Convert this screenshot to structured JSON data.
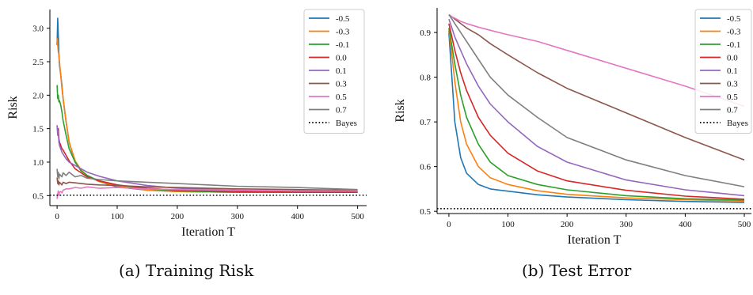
{
  "colors": {
    "-0.5": "#1f77b4",
    "-0.3": "#ff7f0e",
    "-0.1": "#2ca02c",
    "0.0": "#d62728",
    "0.1": "#9467bd",
    "0.3": "#8c564b",
    "0.5": "#e377c2",
    "0.7": "#7f7f7f",
    "bayes": "#000000"
  },
  "captions": {
    "a": "(a) Training Risk",
    "b": "(b) Test Error"
  },
  "chart_data": [
    {
      "type": "line",
      "caption": "(a) Training Risk",
      "xlabel": "Iteration T",
      "ylabel": "Risk",
      "xlim": [
        -12,
        515
      ],
      "ylim": [
        0.35,
        3.28
      ],
      "xticks": [
        0,
        100,
        200,
        300,
        400,
        500
      ],
      "yticks": [
        0.5,
        1.0,
        1.5,
        2.0,
        2.5,
        3.0
      ],
      "xtick_labels": [
        "0",
        "100",
        "200",
        "300",
        "400",
        "500"
      ],
      "ytick_labels": [
        "0.5",
        "1.0",
        "1.5",
        "2.0",
        "2.5",
        "3.0"
      ],
      "legend_position": "top-right",
      "grid": false,
      "bayes": {
        "name": "Bayes",
        "value": 0.505,
        "style": "dotted"
      },
      "series": [
        {
          "name": "-0.5",
          "x": [
            0,
            1,
            2,
            3,
            4,
            6,
            8,
            10,
            15,
            20,
            30,
            40,
            50,
            70,
            100,
            150,
            200,
            300,
            400,
            500
          ],
          "values": [
            2.75,
            3.15,
            2.9,
            2.6,
            2.45,
            2.3,
            2.15,
            1.95,
            1.6,
            1.3,
            1.0,
            0.87,
            0.8,
            0.71,
            0.63,
            0.58,
            0.56,
            0.55,
            0.55,
            0.55
          ]
        },
        {
          "name": "-0.3",
          "x": [
            0,
            1,
            2,
            3,
            4,
            6,
            8,
            10,
            15,
            20,
            30,
            40,
            50,
            70,
            100,
            150,
            200,
            300,
            400,
            500
          ],
          "values": [
            2.85,
            2.75,
            2.65,
            2.6,
            2.5,
            2.3,
            2.1,
            1.95,
            1.6,
            1.3,
            1.02,
            0.88,
            0.8,
            0.71,
            0.64,
            0.58,
            0.56,
            0.55,
            0.55,
            0.55
          ]
        },
        {
          "name": "-0.1",
          "x": [
            0,
            1,
            2,
            3,
            4,
            6,
            8,
            10,
            15,
            20,
            30,
            40,
            50,
            70,
            100,
            150,
            200,
            300,
            400,
            500
          ],
          "values": [
            2.15,
            1.95,
            2.0,
            1.9,
            1.92,
            1.85,
            1.75,
            1.62,
            1.4,
            1.2,
            1.0,
            0.87,
            0.8,
            0.72,
            0.66,
            0.6,
            0.57,
            0.55,
            0.55,
            0.55
          ]
        },
        {
          "name": "0.0",
          "x": [
            0,
            1,
            2,
            3,
            4,
            6,
            8,
            10,
            15,
            20,
            30,
            40,
            50,
            70,
            100,
            150,
            200,
            300,
            400,
            500
          ],
          "values": [
            1.55,
            1.45,
            1.5,
            1.35,
            1.3,
            1.25,
            1.2,
            1.18,
            1.1,
            1.02,
            0.9,
            0.84,
            0.78,
            0.72,
            0.66,
            0.61,
            0.58,
            0.56,
            0.55,
            0.55
          ]
        },
        {
          "name": "0.1",
          "x": [
            0,
            1,
            2,
            3,
            4,
            6,
            8,
            10,
            15,
            20,
            30,
            40,
            50,
            70,
            100,
            150,
            200,
            300,
            400,
            500
          ],
          "values": [
            1.55,
            1.4,
            1.45,
            1.3,
            1.25,
            1.2,
            1.15,
            1.12,
            1.05,
            1.0,
            0.95,
            0.9,
            0.85,
            0.79,
            0.72,
            0.65,
            0.61,
            0.58,
            0.57,
            0.57
          ]
        },
        {
          "name": "0.3",
          "x": [
            0,
            1,
            2,
            3,
            4,
            6,
            8,
            10,
            15,
            20,
            30,
            40,
            50,
            70,
            100,
            150,
            200,
            300,
            400,
            500
          ],
          "values": [
            0.77,
            0.68,
            0.72,
            0.66,
            0.7,
            0.68,
            0.66,
            0.7,
            0.68,
            0.7,
            0.69,
            0.68,
            0.67,
            0.66,
            0.65,
            0.63,
            0.62,
            0.6,
            0.59,
            0.58
          ]
        },
        {
          "name": "0.5",
          "x": [
            0,
            1,
            2,
            3,
            4,
            6,
            8,
            10,
            15,
            20,
            30,
            40,
            50,
            70,
            100,
            150,
            200,
            300,
            400,
            500
          ],
          "values": [
            0.45,
            0.52,
            0.57,
            0.5,
            0.55,
            0.56,
            0.54,
            0.58,
            0.6,
            0.6,
            0.62,
            0.61,
            0.63,
            0.61,
            0.62,
            0.6,
            0.59,
            0.58,
            0.57,
            0.57
          ]
        },
        {
          "name": "0.7",
          "x": [
            0,
            1,
            2,
            3,
            4,
            6,
            8,
            10,
            15,
            20,
            30,
            40,
            50,
            70,
            100,
            150,
            200,
            300,
            400,
            500
          ],
          "values": [
            0.9,
            0.78,
            0.85,
            0.75,
            0.82,
            0.8,
            0.78,
            0.84,
            0.8,
            0.85,
            0.78,
            0.8,
            0.76,
            0.74,
            0.72,
            0.7,
            0.68,
            0.64,
            0.62,
            0.59
          ]
        }
      ]
    },
    {
      "type": "line",
      "caption": "(b) Test Error",
      "xlabel": "Iteration T",
      "ylabel": "Risk",
      "xlim": [
        -20,
        512
      ],
      "ylim": [
        0.495,
        0.955
      ],
      "xticks": [
        0,
        100,
        200,
        300,
        400,
        500
      ],
      "yticks": [
        0.5,
        0.6,
        0.7,
        0.8,
        0.9
      ],
      "xtick_labels": [
        "0",
        "100",
        "200",
        "300",
        "400",
        "500"
      ],
      "ytick_labels": [
        "0.5",
        "0.6",
        "0.7",
        "0.8",
        "0.9"
      ],
      "legend_position": "top-right",
      "grid": false,
      "bayes": {
        "name": "Bayes",
        "value": 0.506,
        "style": "dotted"
      },
      "series": [
        {
          "name": "-0.5",
          "x": [
            0,
            5,
            10,
            20,
            30,
            50,
            70,
            100,
            150,
            200,
            300,
            400,
            500
          ],
          "values": [
            0.9,
            0.8,
            0.7,
            0.62,
            0.585,
            0.56,
            0.55,
            0.545,
            0.537,
            0.532,
            0.526,
            0.522,
            0.52
          ]
        },
        {
          "name": "-0.3",
          "x": [
            0,
            5,
            10,
            20,
            30,
            50,
            70,
            100,
            150,
            200,
            300,
            400,
            500
          ],
          "values": [
            0.905,
            0.85,
            0.79,
            0.7,
            0.65,
            0.6,
            0.575,
            0.56,
            0.546,
            0.538,
            0.53,
            0.526,
            0.523
          ]
        },
        {
          "name": "-0.1",
          "x": [
            0,
            5,
            10,
            20,
            30,
            50,
            70,
            100,
            150,
            200,
            300,
            400,
            500
          ],
          "values": [
            0.91,
            0.87,
            0.83,
            0.76,
            0.71,
            0.65,
            0.61,
            0.58,
            0.56,
            0.548,
            0.535,
            0.528,
            0.525
          ]
        },
        {
          "name": "0.0",
          "x": [
            0,
            5,
            10,
            20,
            30,
            50,
            70,
            100,
            150,
            200,
            300,
            400,
            500
          ],
          "values": [
            0.92,
            0.89,
            0.86,
            0.81,
            0.77,
            0.71,
            0.67,
            0.63,
            0.59,
            0.568,
            0.547,
            0.534,
            0.527
          ]
        },
        {
          "name": "0.1",
          "x": [
            0,
            5,
            10,
            20,
            30,
            50,
            70,
            100,
            150,
            200,
            300,
            400,
            500
          ],
          "values": [
            0.93,
            0.91,
            0.89,
            0.86,
            0.83,
            0.78,
            0.74,
            0.7,
            0.645,
            0.61,
            0.57,
            0.548,
            0.535
          ]
        },
        {
          "name": "0.3",
          "x": [
            0,
            5,
            10,
            20,
            30,
            50,
            70,
            100,
            150,
            200,
            300,
            400,
            500
          ],
          "values": [
            0.94,
            0.935,
            0.93,
            0.92,
            0.91,
            0.895,
            0.875,
            0.85,
            0.81,
            0.775,
            0.72,
            0.665,
            0.615
          ]
        },
        {
          "name": "0.5",
          "x": [
            0,
            5,
            10,
            20,
            30,
            50,
            70,
            100,
            150,
            200,
            300,
            400,
            500
          ],
          "values": [
            0.94,
            0.935,
            0.932,
            0.925,
            0.92,
            0.912,
            0.905,
            0.895,
            0.88,
            0.86,
            0.82,
            0.78,
            0.735
          ]
        },
        {
          "name": "0.7",
          "x": [
            0,
            5,
            10,
            20,
            30,
            50,
            70,
            100,
            150,
            200,
            300,
            400,
            500
          ],
          "values": [
            0.94,
            0.93,
            0.92,
            0.9,
            0.88,
            0.84,
            0.8,
            0.76,
            0.71,
            0.665,
            0.615,
            0.58,
            0.555
          ]
        }
      ]
    }
  ]
}
